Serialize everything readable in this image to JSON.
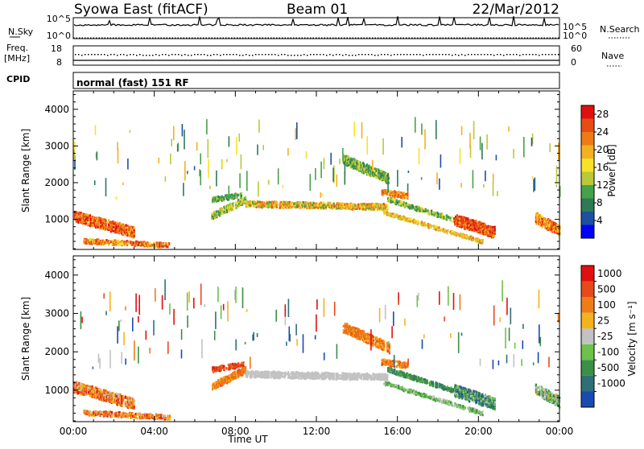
{
  "header": {
    "station": "Syowa East (fitACF)",
    "beam": "Beam 01",
    "date": "22/Mar/2012"
  },
  "status_panels": {
    "nsky_label": "N.Sky",
    "nsearch_label": "N.Search",
    "freq_label_line1": "Freq.",
    "freq_label_line2": "[MHz]",
    "nave_label": "Nave",
    "cpid_label": "CPID",
    "cpid_text": "normal (fast) 151 RF",
    "noise_ticks_left": [
      "10^5",
      "10^0"
    ],
    "noise_ticks_right": [
      "10^5",
      "10^0"
    ],
    "freq_ticks_left": [
      "18",
      "8"
    ],
    "freq_ticks_right": [
      "60",
      "0"
    ]
  },
  "chart_data": [
    {
      "type": "heatmap",
      "title": "",
      "xlabel": "",
      "ylabel": "Slant Range [km]",
      "xlim": [
        0,
        24
      ],
      "ylim": [
        180,
        4500
      ],
      "x_ticks": [
        "00:00",
        "04:00",
        "08:00",
        "12:00",
        "16:00",
        "20:00",
        "00:00"
      ],
      "y_ticks": [
        1000,
        2000,
        3000,
        4000
      ],
      "colorbar": {
        "label": "Power [dB]",
        "ticks": [
          4,
          8,
          12,
          16,
          20,
          24,
          28
        ],
        "range": [
          0,
          30
        ],
        "colors": [
          "#0000ff",
          "#1f4fa0",
          "#2e7a55",
          "#46a24a",
          "#b9c93a",
          "#f7e22a",
          "#f5b021",
          "#ee7a18",
          "#e84c15",
          "#e01010"
        ]
      },
      "echo_bands": [
        {
          "from": 0.0,
          "to": 3.0,
          "range_start": 1100,
          "range_end": 650,
          "width": 280,
          "value": 24,
          "noise": 6
        },
        {
          "from": 0.5,
          "to": 4.8,
          "range_start": 420,
          "range_end": 300,
          "width": 120,
          "value": 22,
          "noise": 6
        },
        {
          "from": 6.8,
          "to": 8.4,
          "range_start": 1550,
          "range_end": 1680,
          "width": 120,
          "value": 10,
          "noise": 4
        },
        {
          "from": 6.8,
          "to": 8.5,
          "range_start": 1100,
          "range_end": 1550,
          "width": 180,
          "value": 14,
          "noise": 6
        },
        {
          "from": 8.5,
          "to": 15.5,
          "range_start": 1430,
          "range_end": 1350,
          "width": 160,
          "value": 18,
          "noise": 8
        },
        {
          "from": 13.3,
          "to": 15.6,
          "range_start": 2650,
          "range_end": 2100,
          "width": 260,
          "value": 11,
          "noise": 5
        },
        {
          "from": 15.2,
          "to": 16.5,
          "range_start": 1750,
          "range_end": 1650,
          "width": 150,
          "value": 22,
          "noise": 5
        },
        {
          "from": 15.3,
          "to": 20.2,
          "range_start": 1200,
          "range_end": 400,
          "width": 90,
          "value": 18,
          "noise": 6
        },
        {
          "from": 15.5,
          "to": 20.5,
          "range_start": 1550,
          "range_end": 700,
          "width": 110,
          "value": 12,
          "noise": 5
        },
        {
          "from": 18.8,
          "to": 20.8,
          "range_start": 1000,
          "range_end": 650,
          "width": 300,
          "value": 25,
          "noise": 5
        },
        {
          "from": 22.8,
          "to": 24.0,
          "range_start": 1050,
          "range_end": 700,
          "width": 280,
          "value": 22,
          "noise": 6
        }
      ]
    },
    {
      "type": "heatmap",
      "title": "",
      "xlabel": "Time UT",
      "ylabel": "Slant Range [km]",
      "xlim": [
        0,
        24
      ],
      "ylim": [
        180,
        4500
      ],
      "x_ticks": [
        "00:00",
        "04:00",
        "08:00",
        "12:00",
        "16:00",
        "20:00",
        "00:00"
      ],
      "y_ticks": [
        1000,
        2000,
        3000,
        4000
      ],
      "colorbar": {
        "label": "Velocity [m s⁻¹]",
        "ticks": [
          "1000",
          "500",
          "100",
          "25",
          "-25",
          "-100",
          "-500",
          "-1000"
        ],
        "colors": [
          "#1a4ab0",
          "#2f6f78",
          "#3c8f46",
          "#6cc24a",
          "#c2c2c2",
          "#f5b21f",
          "#ef7d17",
          "#e8491a",
          "#e01010"
        ]
      },
      "echo_bands": [
        {
          "from": 0.0,
          "to": 3.0,
          "range_start": 1100,
          "range_end": 650,
          "width": 280,
          "value": 6,
          "noise": 2
        },
        {
          "from": 0.5,
          "to": 4.8,
          "range_start": 420,
          "range_end": 300,
          "width": 120,
          "value": 6,
          "noise": 2
        },
        {
          "from": 6.8,
          "to": 8.4,
          "range_start": 1550,
          "range_end": 1680,
          "width": 120,
          "value": 7,
          "noise": 1
        },
        {
          "from": 6.8,
          "to": 8.5,
          "range_start": 1100,
          "range_end": 1550,
          "width": 180,
          "value": 6,
          "noise": 1
        },
        {
          "from": 8.5,
          "to": 15.5,
          "range_start": 1430,
          "range_end": 1350,
          "width": 160,
          "value": 4,
          "noise": 0
        },
        {
          "from": 13.3,
          "to": 15.6,
          "range_start": 2650,
          "range_end": 2100,
          "width": 260,
          "value": 6,
          "noise": 1
        },
        {
          "from": 15.2,
          "to": 16.5,
          "range_start": 1750,
          "range_end": 1650,
          "width": 150,
          "value": 6,
          "noise": 1
        },
        {
          "from": 15.3,
          "to": 20.2,
          "range_start": 1200,
          "range_end": 400,
          "width": 90,
          "value": 3,
          "noise": 1
        },
        {
          "from": 15.5,
          "to": 20.5,
          "range_start": 1550,
          "range_end": 700,
          "width": 110,
          "value": 2,
          "noise": 1
        },
        {
          "from": 18.8,
          "to": 20.8,
          "range_start": 1000,
          "range_end": 650,
          "width": 300,
          "value": 2,
          "noise": 2
        },
        {
          "from": 22.8,
          "to": 24.0,
          "range_start": 1050,
          "range_end": 700,
          "width": 280,
          "value": 3,
          "noise": 2
        }
      ]
    }
  ]
}
